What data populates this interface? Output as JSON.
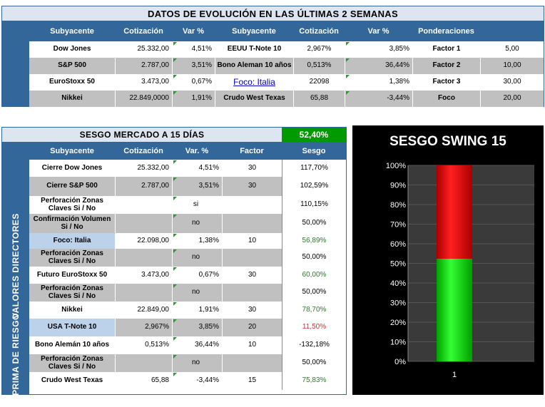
{
  "top": {
    "title": "DATOS DE EVOLUCIÓN EN LAS ÚLTIMAS 2 SEMANAS",
    "headers": [
      "Subyacente",
      "Cotización",
      "Var %",
      "Subyacente",
      "Cotización",
      "Var %",
      "Ponderaciones",
      ""
    ],
    "rows": [
      [
        "Dow Jones",
        "25.332,00",
        "4,51%",
        "EEUU T-Note 10",
        "2,967%",
        "3,85%",
        "Factor 1",
        "5,00"
      ],
      [
        "S&P 500",
        "2.787,00",
        "3,51%",
        "Bono Aleman 10 años",
        "0,513%",
        "36,44%",
        "Factor 2",
        "10,00"
      ],
      [
        "EuroStoxx 50",
        "3.473,00",
        "0,67%",
        "Foco: Italia",
        "22098",
        "1,38%",
        "Factor 3",
        "30,00"
      ],
      [
        "Nikkei",
        "22.849,0000",
        "1,91%",
        "Crudo West Texas",
        "65,88",
        "-3,44%",
        "Foco",
        "20,00"
      ]
    ]
  },
  "bottom": {
    "title": "SESGO  MERCADO A 15 DÍAS",
    "total": "52,40%",
    "headers": [
      "Subyacente",
      "Cotización",
      "Var. %",
      "Factor",
      "Sesgo"
    ],
    "side_labels": [
      "VALORES DIRECTORES",
      "PRIMA DE RIESGO"
    ],
    "rows": [
      [
        "Cierre Dow Jones",
        "25.332,00",
        "4,51%",
        "30",
        "117,70%"
      ],
      [
        "Cierre  S&P 500",
        "2.787,00",
        "3,51%",
        "30",
        "102,59%"
      ],
      [
        "Perforación Zonas Claves Si / No",
        "",
        "si",
        "",
        "110,15%"
      ],
      [
        "Confirmación Volumen Si / No",
        "",
        "no",
        "",
        "50,00%"
      ],
      [
        "Foco: Italia",
        "22.098,00",
        "1,38%",
        "10",
        "56,89%"
      ],
      [
        "Perforación Zonas Claves Si / No",
        "",
        "no",
        "",
        "50,00%"
      ],
      [
        "Futuro EuroStoxx 50",
        "3.473,00",
        "0,67%",
        "30",
        "60,00%"
      ],
      [
        "Perforación Zonas Claves Si / No",
        "",
        "no",
        "",
        "50,00%"
      ],
      [
        "Nikkei",
        "22.849,00",
        "1,91%",
        "30",
        "78,70%"
      ],
      [
        "USA T-Note 10",
        "2,967%",
        "3,85%",
        "20",
        "11,50%"
      ],
      [
        "Bono Alemán 10 años",
        "0,513%",
        "36,44%",
        "10",
        "-132,18%"
      ],
      [
        "Perforación Zonas Claves Si / No",
        "",
        "no",
        "",
        "50,00%"
      ],
      [
        "Crudo West Texas",
        "65,88",
        "-3,44%",
        "15",
        "75,83%"
      ]
    ],
    "sesgo_colors": [
      "#000000",
      "#000000",
      "#000000",
      "#000000",
      "#2d7a2d",
      "#000000",
      "#2d7a2d",
      "#000000",
      "#2d7a2d",
      "#c0392b",
      "#000000",
      "#000000",
      "#2d7a2d"
    ]
  },
  "chart_data": {
    "type": "bar",
    "title": "SESGO SWING 15",
    "categories": [
      "1"
    ],
    "series": [
      {
        "values": [
          52.4
        ],
        "color": "#00cc00"
      },
      {
        "values": [
          47.6
        ],
        "color": "#dd0000"
      }
    ],
    "stacked": true,
    "ylim": [
      0,
      100
    ],
    "yticks": [
      "0%",
      "10%",
      "20%",
      "30%",
      "40%",
      "50%",
      "60%",
      "70%",
      "80%",
      "90%",
      "100%"
    ]
  }
}
